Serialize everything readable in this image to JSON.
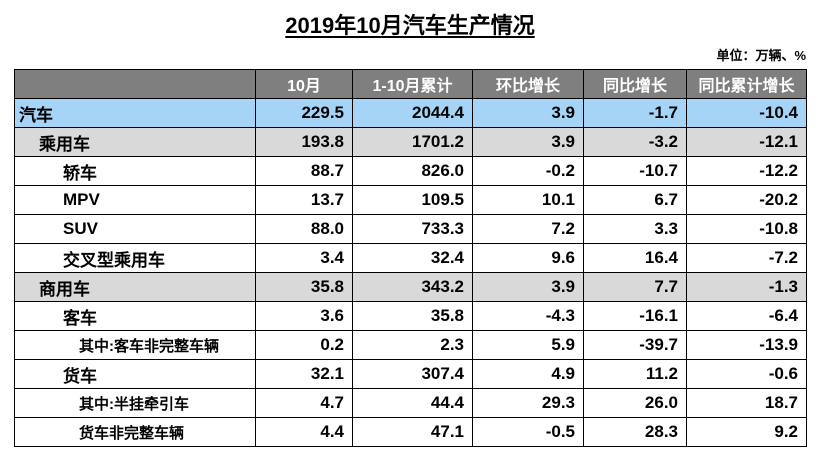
{
  "title": "2019年10月汽车生产情况",
  "unit": "单位：万辆、%",
  "headers": [
    "",
    "10月",
    "1-10月累计",
    "环比增长",
    "同比增长",
    "同比累计增长"
  ],
  "rows": [
    {
      "label": "汽车",
      "level": 0,
      "style": "hl",
      "values": [
        "229.5",
        "2044.4",
        "3.9",
        "-1.7",
        "-10.4"
      ]
    },
    {
      "label": "乘用车",
      "level": 1,
      "style": "cat",
      "values": [
        "193.8",
        "1701.2",
        "3.9",
        "-3.2",
        "-12.1"
      ]
    },
    {
      "label": "轿车",
      "level": 2,
      "style": "",
      "values": [
        "88.7",
        "826.0",
        "-0.2",
        "-10.7",
        "-12.2"
      ]
    },
    {
      "label": "MPV",
      "level": 2,
      "style": "",
      "values": [
        "13.7",
        "109.5",
        "10.1",
        "6.7",
        "-20.2"
      ]
    },
    {
      "label": "SUV",
      "level": 2,
      "style": "",
      "values": [
        "88.0",
        "733.3",
        "7.2",
        "3.3",
        "-10.8"
      ]
    },
    {
      "label": "交叉型乘用车",
      "level": 2,
      "style": "",
      "values": [
        "3.4",
        "32.4",
        "9.6",
        "16.4",
        "-7.2"
      ]
    },
    {
      "label": "商用车",
      "level": 1,
      "style": "cat",
      "values": [
        "35.8",
        "343.2",
        "3.9",
        "7.7",
        "-1.3"
      ]
    },
    {
      "label": "客车",
      "level": 2,
      "style": "",
      "values": [
        "3.6",
        "35.8",
        "-4.3",
        "-16.1",
        "-6.4"
      ]
    },
    {
      "label": "其中:客车非完整车辆",
      "level": 3,
      "style": "",
      "values": [
        "0.2",
        "2.3",
        "5.9",
        "-39.7",
        "-13.9"
      ]
    },
    {
      "label": "货车",
      "level": 2,
      "style": "",
      "values": [
        "32.1",
        "307.4",
        "4.9",
        "11.2",
        "-0.6"
      ]
    },
    {
      "label": "其中:半挂牵引车",
      "level": 3,
      "style": "",
      "values": [
        "4.7",
        "44.4",
        "29.3",
        "26.0",
        "18.7"
      ]
    },
    {
      "label": "货车非完整车辆",
      "level": 3,
      "style": "",
      "values": [
        "4.4",
        "47.1",
        "-0.5",
        "28.3",
        "9.2"
      ]
    }
  ]
}
